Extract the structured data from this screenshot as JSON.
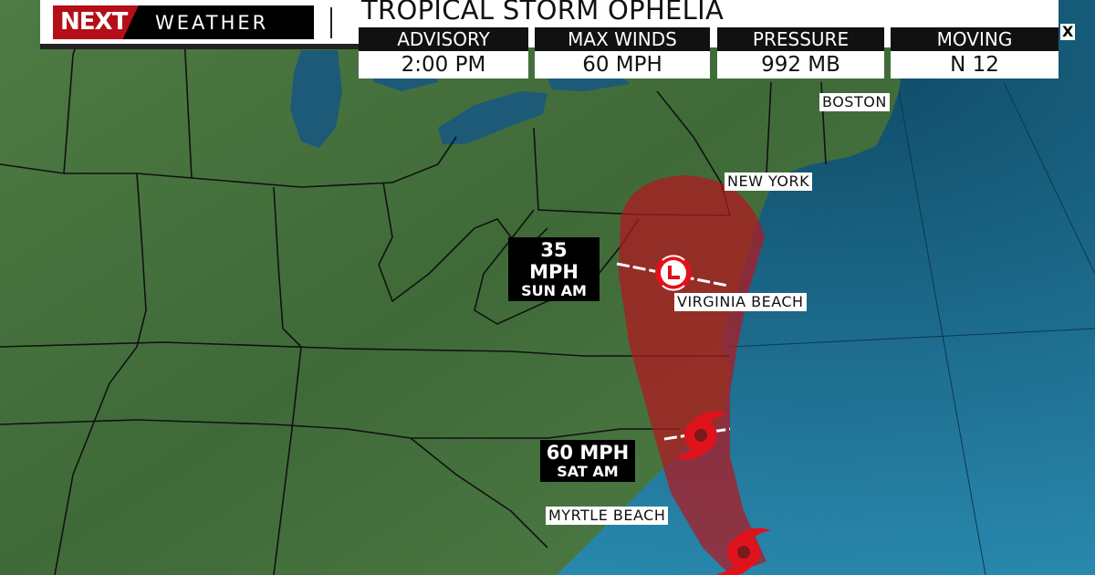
{
  "brand": {
    "logo_next": "NEXT",
    "logo_weather": "WEATHER"
  },
  "header": {
    "title": "TROPICAL STORM OPHELIA",
    "close_label": "X"
  },
  "stats": [
    {
      "label": "ADVISORY",
      "value": "2:00 PM"
    },
    {
      "label": "MAX WINDS",
      "value": "60 MPH"
    },
    {
      "label": "PRESSURE",
      "value": "992 MB"
    },
    {
      "label": "MOVING",
      "value": "N 12"
    }
  ],
  "cities": {
    "boston": "BOSTON",
    "new_york": "NEW YORK",
    "virginia_beach": "VIRGINIA BEACH",
    "myrtle_beach": "MYRTLE BEACH"
  },
  "forecast_points": [
    {
      "wind": "35 MPH",
      "time": "SUN AM",
      "icon": "low-pressure-icon"
    },
    {
      "wind": "60 MPH",
      "time": "SAT AM",
      "icon": "tropical-storm-icon"
    },
    {
      "icon": "tropical-storm-icon"
    }
  ],
  "colors": {
    "cone": "#b3161f",
    "storm_icon": "#e0121c",
    "land": "#46723f",
    "ocean": "#1f6e92",
    "brand_red": "#b40f18"
  }
}
